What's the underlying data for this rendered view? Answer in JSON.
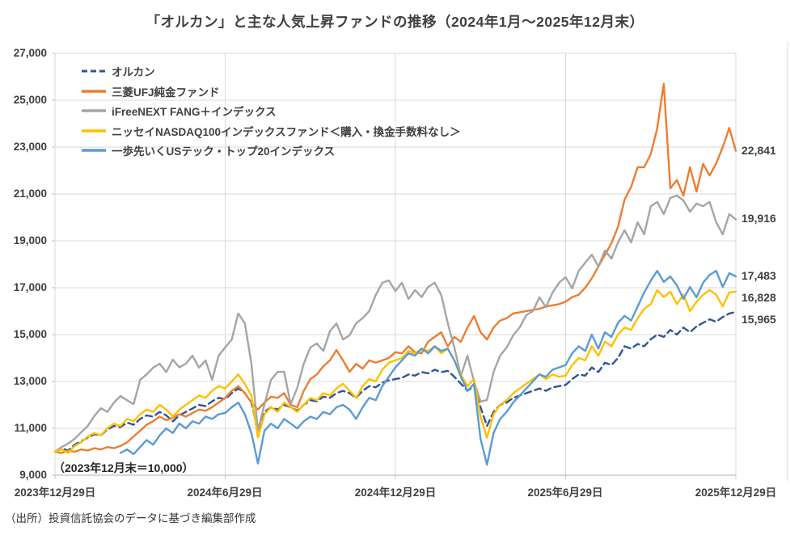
{
  "title": "「オルカン」と主な人気上昇ファンドの推移（2024年1月～2025年12月末）",
  "annotation": "（2023年12月末＝10,000）",
  "source": "（出所）投資信託協会のデータに基づき編集部作成",
  "colors": {
    "grid": "#d9d9d9",
    "axis": "#bfbfbf",
    "text": "#404040"
  },
  "chart_data": {
    "type": "line",
    "title": "「オルカン」と主な人気上昇ファンドの推移（2024年1月～2025年12月末）",
    "grid": "horizontal-and-vertical",
    "legend_position": "top-left-inside",
    "y_axis": {
      "min": 9000,
      "max": 27000,
      "step": 2000,
      "tick_labels": [
        "27,000",
        "25,000",
        "23,000",
        "21,000",
        "19,000",
        "17,000",
        "15,000",
        "13,000",
        "11,000",
        "9,000"
      ]
    },
    "x_axis": {
      "weeks_total": 104,
      "tick_weeks": [
        0,
        26,
        52,
        78,
        104
      ],
      "tick_labels": [
        "2023年12月29日",
        "2024年6月29日",
        "2024年12月29日",
        "2025年6月29日",
        "2025年12月29日"
      ]
    },
    "series": [
      {
        "name": "オルカン",
        "color": "#2f5597",
        "dashed": true,
        "start_week": 0,
        "end_label": "15,965",
        "values": [
          10000,
          10150,
          10050,
          10300,
          10450,
          10600,
          10750,
          10700,
          10950,
          11100,
          11050,
          11250,
          11150,
          11400,
          11550,
          11500,
          11700,
          11550,
          11300,
          11550,
          11700,
          11850,
          12000,
          11950,
          12150,
          12300,
          12250,
          12500,
          12700,
          12500,
          12100,
          10900,
          11700,
          11900,
          11800,
          12000,
          11900,
          11750,
          12000,
          12200,
          12150,
          12350,
          12300,
          12500,
          12600,
          12500,
          12300,
          12600,
          12800,
          12750,
          12950,
          13050,
          13100,
          13150,
          13300,
          13250,
          13400,
          13350,
          13500,
          13400,
          13450,
          13200,
          12900,
          12600,
          12800,
          11900,
          11100,
          11700,
          12000,
          12100,
          12300,
          12400,
          12500,
          12600,
          12700,
          12600,
          12750,
          12800,
          12850,
          13100,
          13300,
          13250,
          13600,
          13400,
          13800,
          13700,
          14000,
          14500,
          14400,
          14600,
          14500,
          14800,
          15000,
          14900,
          15200,
          15000,
          15300,
          15100,
          15350,
          15500,
          15650,
          15550,
          15750,
          15900,
          15965
        ]
      },
      {
        "name": "三菱UFJ純金ファンド",
        "color": "#ed7d31",
        "dashed": false,
        "start_week": 0,
        "end_label": "22,841",
        "values": [
          10000,
          9950,
          10050,
          10000,
          10100,
          10050,
          10150,
          10100,
          10200,
          10150,
          10250,
          10400,
          10650,
          10900,
          11150,
          11300,
          11500,
          11350,
          11450,
          11600,
          11500,
          11650,
          11800,
          11750,
          11900,
          12100,
          12300,
          12600,
          12800,
          12500,
          12100,
          11800,
          12100,
          12350,
          12300,
          12500,
          12000,
          11900,
          12600,
          13100,
          13300,
          13650,
          13900,
          14340,
          13900,
          13410,
          13750,
          13550,
          13900,
          13800,
          13900,
          14000,
          14250,
          14200,
          14500,
          14250,
          14200,
          14700,
          14900,
          15100,
          14500,
          14900,
          14690,
          15300,
          15790,
          15100,
          14790,
          15300,
          15600,
          15700,
          15900,
          15950,
          16000,
          16050,
          16100,
          16200,
          16250,
          16300,
          16400,
          16600,
          16700,
          17000,
          17400,
          17900,
          18400,
          18900,
          19600,
          20760,
          21300,
          22140,
          22140,
          22700,
          23800,
          25700,
          21240,
          21600,
          20930,
          22140,
          21100,
          22280,
          21790,
          22300,
          23000,
          23820,
          22841
        ]
      },
      {
        "name": "iFreeNEXT FANG＋インデックス",
        "color": "#a5a5a5",
        "dashed": false,
        "start_week": 0,
        "end_label": "19,916",
        "values": [
          10000,
          10200,
          10350,
          10550,
          10830,
          11100,
          11520,
          11860,
          11700,
          12100,
          12380,
          12200,
          12030,
          13070,
          13300,
          13590,
          13760,
          13400,
          13930,
          13600,
          13760,
          14100,
          13590,
          13900,
          13070,
          14100,
          14450,
          14790,
          15900,
          15480,
          13760,
          10900,
          12030,
          13070,
          13410,
          13410,
          12030,
          12720,
          13760,
          14450,
          14620,
          14300,
          15140,
          15480,
          14790,
          14970,
          15480,
          15700,
          16000,
          16690,
          17210,
          17310,
          16860,
          17210,
          16520,
          16900,
          16600,
          17030,
          17210,
          16690,
          15480,
          14450,
          13240,
          14100,
          13000,
          12140,
          12210,
          13410,
          14100,
          14450,
          14970,
          15310,
          15830,
          16000,
          16590,
          16170,
          16790,
          17210,
          17450,
          16970,
          17720,
          18070,
          18410,
          17900,
          18590,
          18240,
          18930,
          19450,
          18930,
          19790,
          19280,
          20480,
          20660,
          20140,
          20830,
          20930,
          20720,
          20240,
          20590,
          20480,
          20660,
          19790,
          19280,
          20140,
          19916
        ]
      },
      {
        "name": "ニッセイNASDAQ100インデックスファンド＜購入・換金手数料なし＞",
        "color": "#ffc000",
        "dashed": false,
        "start_week": 0,
        "end_label": "16,828",
        "values": [
          10000,
          10100,
          9950,
          10250,
          10400,
          10650,
          10800,
          10700,
          11000,
          11200,
          11100,
          11400,
          11300,
          11600,
          11800,
          11700,
          12000,
          11800,
          11500,
          11800,
          12000,
          12200,
          12400,
          12300,
          12600,
          12800,
          12700,
          13000,
          13300,
          12900,
          12400,
          10600,
          11600,
          11900,
          11700,
          12100,
          11900,
          11700,
          12000,
          12300,
          12200,
          12500,
          12400,
          12700,
          12900,
          12600,
          12300,
          12800,
          13100,
          13000,
          13500,
          13800,
          13900,
          14000,
          14300,
          14200,
          14400,
          14300,
          14500,
          14200,
          14400,
          13900,
          13300,
          12800,
          13100,
          11500,
          10600,
          11600,
          12000,
          12200,
          12500,
          12700,
          12900,
          13100,
          13300,
          13100,
          13300,
          13200,
          13250,
          13700,
          14000,
          13900,
          14500,
          14100,
          14700,
          14500,
          15000,
          15300,
          15200,
          15700,
          16100,
          16300,
          16900,
          16600,
          16830,
          16300,
          16700,
          16000,
          16400,
          16700,
          16900,
          16700,
          16200,
          16800,
          16828
        ]
      },
      {
        "name": "一歩先いくUSテック・トップ20インデックス",
        "color": "#5b9bd5",
        "dashed": false,
        "start_week": 10,
        "end_label": "17,483",
        "values": [
          9950,
          10100,
          9900,
          10200,
          10500,
          10300,
          10700,
          11000,
          10800,
          11200,
          11000,
          11300,
          11200,
          11500,
          11400,
          11600,
          11650,
          11900,
          12100,
          11600,
          10800,
          9500,
          10900,
          11200,
          11000,
          11400,
          11200,
          11000,
          11300,
          11500,
          11400,
          11700,
          11600,
          11900,
          12000,
          11800,
          11400,
          11900,
          12300,
          12200,
          12800,
          13200,
          13600,
          13900,
          14200,
          14100,
          14400,
          14200,
          14500,
          14300,
          14400,
          13900,
          13200,
          12600,
          12900,
          10550,
          9450,
          10800,
          11400,
          11700,
          12100,
          12400,
          12700,
          13000,
          13300,
          13200,
          13500,
          13600,
          13700,
          14200,
          14500,
          14300,
          15000,
          14400,
          15100,
          14900,
          15500,
          15800,
          15600,
          16200,
          16800,
          17300,
          17720,
          17250,
          17480,
          17100,
          16520,
          17030,
          16590,
          17210,
          17550,
          17720,
          17030,
          17620,
          17483
        ]
      }
    ]
  }
}
